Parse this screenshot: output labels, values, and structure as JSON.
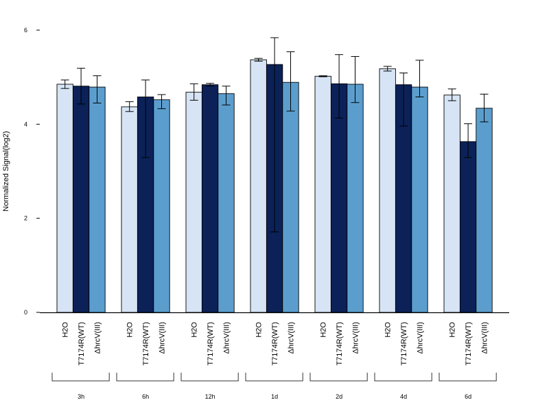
{
  "chart_data": {
    "type": "bar",
    "title": "",
    "xlabel": "",
    "ylabel": "Normalized Signal(log2)",
    "ylim": [
      0,
      6
    ],
    "yticks": [
      0,
      2,
      4,
      6
    ],
    "grid": false,
    "legend": "none",
    "groups": [
      "3h",
      "6h",
      "12h",
      "1d",
      "2d",
      "4d",
      "6d"
    ],
    "bar_labels": [
      "H2O",
      "T7174R(WT)",
      "ΔhrcV(III)"
    ],
    "series": [
      {
        "label": "H2O",
        "color": "#d6e4f5",
        "values": [
          4.85,
          4.37,
          4.68,
          5.37,
          5.02,
          5.18,
          4.62
        ],
        "err_low": [
          4.76,
          4.27,
          4.51,
          5.34,
          5.01,
          5.13,
          4.5
        ],
        "err_high": [
          4.94,
          4.48,
          4.86,
          5.4,
          5.03,
          5.23,
          4.75
        ]
      },
      {
        "label": "T7174R(WT)",
        "color": "#0b2158",
        "values": [
          4.81,
          4.58,
          4.84,
          5.27,
          4.86,
          4.84,
          3.63
        ],
        "err_low": [
          4.43,
          3.29,
          4.81,
          1.71,
          4.13,
          3.96,
          3.29
        ],
        "err_high": [
          5.19,
          4.94,
          4.87,
          5.84,
          5.48,
          5.09,
          4.01
        ]
      },
      {
        "label": "ΔhrcV(III)",
        "color": "#5b9ece",
        "values": [
          4.79,
          4.52,
          4.65,
          4.89,
          4.85,
          4.79,
          4.34
        ],
        "err_low": [
          4.45,
          4.33,
          4.41,
          4.28,
          4.46,
          4.58,
          4.05
        ],
        "err_high": [
          5.03,
          4.63,
          4.81,
          5.54,
          5.44,
          5.36,
          4.64
        ]
      }
    ]
  }
}
